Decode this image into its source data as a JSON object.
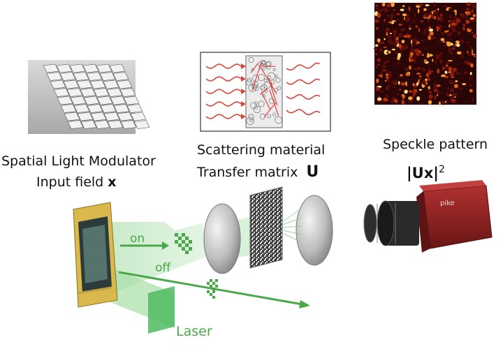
{
  "slm": {
    "line1": "Spatial Light Modulator",
    "line2": "Input field",
    "symbol": "x"
  },
  "scattering": {
    "line1": "Scattering material",
    "line2": "Transfer matrix",
    "symbol": "U"
  },
  "speckle": {
    "line1": "Speckle pattern",
    "formula": "|Ux|",
    "exponent": "2"
  },
  "beam": {
    "on": "on",
    "off": "off",
    "laser": "Laser"
  },
  "camera": {
    "brand": "pike"
  },
  "colors": {
    "green": "#4aa84a",
    "wave_red": "#e0413a",
    "speckle_bg": "#2a0606",
    "camera_red": "#8e2424"
  }
}
